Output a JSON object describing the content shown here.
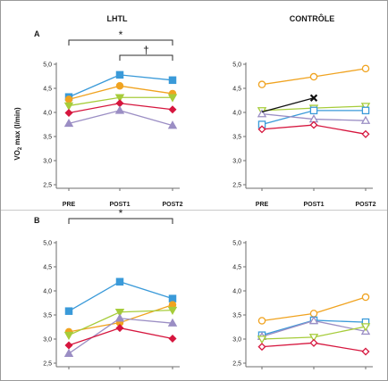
{
  "columns": {
    "left": "LHTL",
    "right": "CONTRÔLE"
  },
  "rows": {
    "top": "A",
    "bottom": "B"
  },
  "ylabel": {
    "main": "VO",
    "sub": "2",
    "rest": " max (l/min)"
  },
  "categories": [
    "PRE",
    "POST1",
    "POST2"
  ],
  "chart_data": [
    {
      "id": "A-LHTL",
      "type": "line",
      "column": "LHTL",
      "row": "A",
      "categories": [
        "PRE",
        "POST1",
        "POST2"
      ],
      "ylim": [
        2.5,
        5.0
      ],
      "yticks": [
        "2,5",
        "3,0",
        "3,5",
        "4,0",
        "4,5",
        "5,0"
      ],
      "show_category_labels": true,
      "annotations": [
        {
          "text": "*",
          "from": 0,
          "to": 2,
          "level": "high"
        },
        {
          "text": "†",
          "from": 1,
          "to": 2,
          "level": "low"
        }
      ],
      "series": [
        {
          "color": "#3a9ad9",
          "marker": "square",
          "filled": true,
          "values": [
            4.32,
            4.78,
            4.67
          ]
        },
        {
          "color": "#f0a320",
          "marker": "circle",
          "filled": true,
          "values": [
            4.27,
            4.55,
            4.39
          ]
        },
        {
          "color": "#a6cc3a",
          "marker": "triangle-down",
          "filled": true,
          "values": [
            4.14,
            4.31,
            4.31
          ]
        },
        {
          "color": "#d6163e",
          "marker": "diamond",
          "filled": true,
          "values": [
            3.99,
            4.19,
            4.06
          ]
        },
        {
          "color": "#9b8ec4",
          "marker": "triangle-up",
          "filled": true,
          "values": [
            3.77,
            4.04,
            3.73
          ]
        }
      ]
    },
    {
      "id": "A-CONTROLE",
      "type": "line",
      "column": "CONTRÔLE",
      "row": "A",
      "categories": [
        "PRE",
        "POST1",
        "POST2"
      ],
      "ylim": [
        2.5,
        5.0
      ],
      "yticks": [
        "2,5",
        "3,0",
        "3,5",
        "4,0",
        "4,5",
        "5,0"
      ],
      "show_category_labels": true,
      "annotations": [],
      "series": [
        {
          "color": "#f0a320",
          "marker": "circle",
          "filled": false,
          "values": [
            4.58,
            4.74,
            4.91
          ]
        },
        {
          "color": "#a6cc3a",
          "marker": "triangle-down",
          "filled": false,
          "values": [
            4.04,
            4.09,
            4.13
          ]
        },
        {
          "color": "#3a9ad9",
          "marker": "square",
          "filled": false,
          "values": [
            3.75,
            4.04,
            4.04
          ]
        },
        {
          "color": "#9b8ec4",
          "marker": "triangle-up",
          "filled": false,
          "values": [
            3.97,
            3.86,
            3.83
          ]
        },
        {
          "color": "#d6163e",
          "marker": "diamond",
          "filled": false,
          "values": [
            3.65,
            3.74,
            3.55
          ]
        },
        {
          "color": "#111111",
          "marker": "x",
          "filled": false,
          "values": [
            4.01,
            4.3,
            null
          ]
        }
      ]
    },
    {
      "id": "B-LHTL",
      "type": "line",
      "column": "LHTL",
      "row": "B",
      "categories": [
        "PRE",
        "POST1",
        "POST2"
      ],
      "ylim": [
        2.5,
        5.0
      ],
      "yticks": [
        "2,5",
        "3,0",
        "3,5",
        "4,0",
        "4,5",
        "5,0"
      ],
      "show_category_labels": false,
      "annotations": [
        {
          "text": "*",
          "from": 0,
          "to": 2,
          "level": "high"
        }
      ],
      "series": [
        {
          "color": "#3a9ad9",
          "marker": "square",
          "filled": true,
          "values": [
            3.58,
            4.19,
            3.84
          ]
        },
        {
          "color": "#f0a320",
          "marker": "circle",
          "filled": true,
          "values": [
            3.15,
            3.34,
            3.71
          ]
        },
        {
          "color": "#a6cc3a",
          "marker": "triangle-down",
          "filled": true,
          "values": [
            3.08,
            3.56,
            3.6
          ]
        },
        {
          "color": "#9b8ec4",
          "marker": "triangle-up",
          "filled": true,
          "values": [
            2.7,
            3.43,
            3.33
          ]
        },
        {
          "color": "#d6163e",
          "marker": "diamond",
          "filled": true,
          "values": [
            2.87,
            3.23,
            3.01
          ]
        }
      ]
    },
    {
      "id": "B-CONTROLE",
      "type": "line",
      "column": "CONTRÔLE",
      "row": "B",
      "categories": [
        "PRE",
        "POST1",
        "POST2"
      ],
      "ylim": [
        2.5,
        5.0
      ],
      "yticks": [
        "2,5",
        "3,0",
        "3,5",
        "4,0",
        "4,5",
        "5,0"
      ],
      "show_category_labels": false,
      "annotations": [],
      "series": [
        {
          "color": "#f0a320",
          "marker": "circle",
          "filled": false,
          "values": [
            3.38,
            3.53,
            3.87
          ]
        },
        {
          "color": "#3a9ad9",
          "marker": "square",
          "filled": false,
          "values": [
            3.08,
            3.39,
            3.35
          ]
        },
        {
          "color": "#9b8ec4",
          "marker": "triangle-up",
          "filled": false,
          "values": [
            3.05,
            3.38,
            3.16
          ]
        },
        {
          "color": "#a6cc3a",
          "marker": "triangle-down",
          "filled": false,
          "values": [
            3.0,
            3.04,
            3.26
          ]
        },
        {
          "color": "#d6163e",
          "marker": "diamond",
          "filled": false,
          "values": [
            2.84,
            2.92,
            2.74
          ]
        }
      ]
    }
  ]
}
